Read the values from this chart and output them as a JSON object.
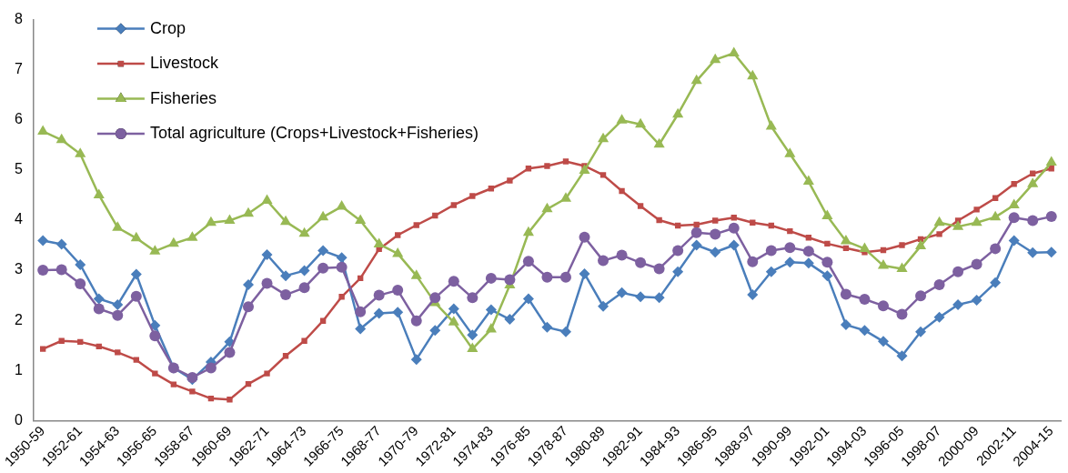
{
  "chart_data": {
    "type": "line",
    "categories": [
      "1950-59",
      null,
      "1952-61",
      null,
      "1954-63",
      null,
      "1956-65",
      null,
      "1958-67",
      null,
      "1960-69",
      null,
      "1962-71",
      null,
      "1964-73",
      null,
      "1966-75",
      null,
      "1968-77",
      null,
      "1970-79",
      null,
      "1972-81",
      null,
      "1974-83",
      null,
      "1976-85",
      null,
      "1978-87",
      null,
      "1980-89",
      null,
      "1982-91",
      null,
      "1984-93",
      null,
      "1986-95",
      null,
      "1988-97",
      null,
      "1990-99",
      null,
      "1992-01",
      null,
      "1994-03",
      null,
      "1996-05",
      null,
      "1998-07",
      null,
      "2000-09",
      null,
      "2002-11",
      null,
      "2004-15"
    ],
    "series": [
      {
        "name": "Crop",
        "color": "#4a7ebb",
        "marker": "diamond",
        "values": [
          3.59,
          3.52,
          3.11,
          2.43,
          2.31,
          2.92,
          1.9,
          1.05,
          0.82,
          1.17,
          1.57,
          2.71,
          3.31,
          2.89,
          2.99,
          3.39,
          3.25,
          1.83,
          2.14,
          2.16,
          1.22,
          1.8,
          2.23,
          1.71,
          2.21,
          2.02,
          2.43,
          1.86,
          1.77,
          2.93,
          2.28,
          2.55,
          2.47,
          2.45,
          2.97,
          3.5,
          3.36,
          3.5,
          2.51,
          2.97,
          3.16,
          3.14,
          2.89,
          1.91,
          1.8,
          1.58,
          1.29,
          1.77,
          2.06,
          2.31,
          2.4,
          2.75,
          3.59,
          3.35,
          3.36
        ]
      },
      {
        "name": "Livestock",
        "color": "#be4b48",
        "marker": "square",
        "values": [
          1.43,
          1.59,
          1.57,
          1.48,
          1.36,
          1.21,
          0.94,
          0.72,
          0.58,
          0.44,
          0.42,
          0.73,
          0.94,
          1.29,
          1.59,
          1.99,
          2.47,
          2.84,
          3.42,
          3.7,
          3.9,
          4.09,
          4.3,
          4.48,
          4.63,
          4.79,
          5.03,
          5.08,
          5.17,
          5.08,
          4.9,
          4.58,
          4.28,
          4.0,
          3.89,
          3.91,
          3.99,
          4.05,
          3.95,
          3.89,
          3.78,
          3.65,
          3.53,
          3.44,
          3.36,
          3.4,
          3.5,
          3.62,
          3.72,
          3.99,
          4.21,
          4.44,
          4.72,
          4.93,
          5.03
        ]
      },
      {
        "name": "Fisheries",
        "color": "#98b954",
        "marker": "triangle",
        "values": [
          5.77,
          5.6,
          5.32,
          4.5,
          3.85,
          3.64,
          3.38,
          3.53,
          3.65,
          3.95,
          3.99,
          4.13,
          4.39,
          3.97,
          3.73,
          4.06,
          4.27,
          3.99,
          3.52,
          3.33,
          2.89,
          2.35,
          1.96,
          1.43,
          1.82,
          2.7,
          3.75,
          4.22,
          4.43,
          4.99,
          5.62,
          5.99,
          5.91,
          5.51,
          6.11,
          6.78,
          7.2,
          7.33,
          6.87,
          5.87,
          5.32,
          4.77,
          4.08,
          3.58,
          3.43,
          3.09,
          3.03,
          3.48,
          3.95,
          3.87,
          3.95,
          4.06,
          4.3,
          4.72,
          5.15
        ]
      },
      {
        "name": "Total agriculture (Crops+Livestock+Fisheries)",
        "color": "#7d60a0",
        "marker": "circle",
        "values": [
          3.0,
          3.01,
          2.73,
          2.23,
          2.1,
          2.48,
          1.69,
          1.05,
          0.86,
          1.05,
          1.36,
          2.27,
          2.74,
          2.51,
          2.65,
          3.04,
          3.06,
          2.17,
          2.5,
          2.6,
          1.99,
          2.45,
          2.78,
          2.45,
          2.84,
          2.81,
          3.18,
          2.86,
          2.86,
          3.66,
          3.19,
          3.3,
          3.15,
          3.03,
          3.39,
          3.75,
          3.72,
          3.84,
          3.17,
          3.39,
          3.45,
          3.38,
          3.16,
          2.52,
          2.42,
          2.29,
          2.12,
          2.49,
          2.71,
          2.97,
          3.12,
          3.43,
          4.05,
          3.99,
          4.07
        ]
      }
    ],
    "ylim": [
      0,
      8
    ],
    "yticks": [
      0,
      1,
      2,
      3,
      4,
      5,
      6,
      7,
      8
    ],
    "grid": false,
    "legend": "top left",
    "line_style": "solid"
  }
}
